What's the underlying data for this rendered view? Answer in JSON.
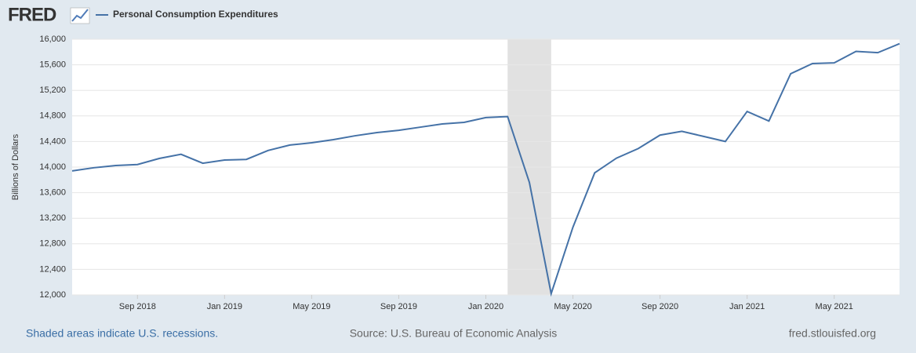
{
  "logo": "FRED",
  "footer": {
    "left": "Shaded areas indicate U.S. recessions.",
    "center": "Source: U.S. Bureau of Economic Analysis",
    "right": "fred.stlouisfed.org"
  },
  "chart_data": {
    "type": "line",
    "ylabel": "Billions of Dollars",
    "x": [
      "Jun 2018",
      "Jul 2018",
      "Aug 2018",
      "Sep 2018",
      "Oct 2018",
      "Nov 2018",
      "Dec 2018",
      "Jan 2019",
      "Feb 2019",
      "Mar 2019",
      "Apr 2019",
      "May 2019",
      "Jun 2019",
      "Jul 2019",
      "Aug 2019",
      "Sep 2019",
      "Oct 2019",
      "Nov 2019",
      "Dec 2019",
      "Jan 2020",
      "Feb 2020",
      "Mar 2020",
      "Apr 2020",
      "May 2020",
      "Jun 2020",
      "Jul 2020",
      "Aug 2020",
      "Sep 2020",
      "Oct 2020",
      "Nov 2020",
      "Dec 2020",
      "Jan 2021",
      "Feb 2021",
      "Mar 2021",
      "Apr 2021",
      "May 2021",
      "Jun 2021",
      "Jul 2021",
      "Aug 2021"
    ],
    "series": [
      {
        "name": "Personal Consumption Expenditures",
        "color": "#4572a7",
        "values": [
          13940,
          13990,
          14025,
          14040,
          14135,
          14200,
          14060,
          14110,
          14120,
          14260,
          14345,
          14380,
          14430,
          14490,
          14540,
          14575,
          14625,
          14675,
          14700,
          14775,
          14790,
          13760,
          12020,
          13060,
          13910,
          14140,
          14290,
          14500,
          14560,
          14480,
          14400,
          14870,
          14720,
          15460,
          15620,
          15630,
          15810,
          15790,
          15930
        ]
      }
    ],
    "xticks": [
      "Sep 2018",
      "Jan 2019",
      "May 2019",
      "Sep 2019",
      "Jan 2020",
      "May 2020",
      "Sep 2020",
      "Jan 2021",
      "May 2021"
    ],
    "recessions": [
      {
        "start": "Feb 2020",
        "end": "Apr 2020"
      }
    ],
    "ylim": [
      12000,
      16000
    ],
    "yticks": [
      {
        "value": 12000,
        "label": "12,000"
      },
      {
        "value": 12400,
        "label": "12,400"
      },
      {
        "value": 12800,
        "label": "12,800"
      },
      {
        "value": 13200,
        "label": "13,200"
      },
      {
        "value": 13600,
        "label": "13,600"
      },
      {
        "value": 14000,
        "label": "14,000"
      },
      {
        "value": 14400,
        "label": "14,400"
      },
      {
        "value": 14800,
        "label": "14,800"
      },
      {
        "value": 15200,
        "label": "15,200"
      },
      {
        "value": 15600,
        "label": "15,600"
      },
      {
        "value": 16000,
        "label": "16,000"
      }
    ],
    "grid": true
  }
}
